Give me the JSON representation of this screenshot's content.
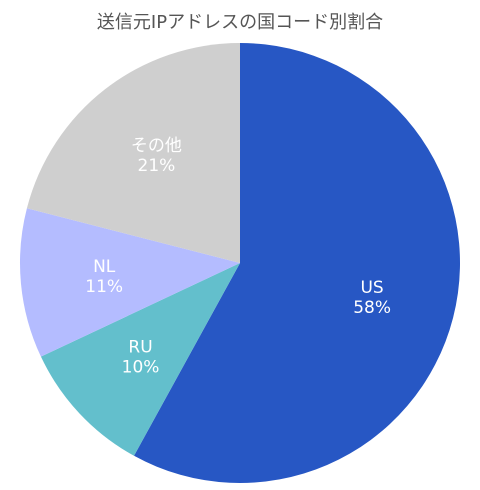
{
  "chart_data": {
    "type": "pie",
    "title": "送信元IPアドレスの国コード別割合",
    "slices": [
      {
        "label": "US",
        "value": 58,
        "percent_label": "58%",
        "color": "#2757c4"
      },
      {
        "label": "RU",
        "value": 10,
        "percent_label": "10%",
        "color": "#63bfcc"
      },
      {
        "label": "NL",
        "value": 11,
        "percent_label": "11%",
        "color": "#b4bcff"
      },
      {
        "label": "その他",
        "value": 21,
        "percent_label": "21%",
        "color": "#cfcfcf"
      }
    ],
    "start_angle_deg": 0,
    "direction": "clockwise"
  }
}
